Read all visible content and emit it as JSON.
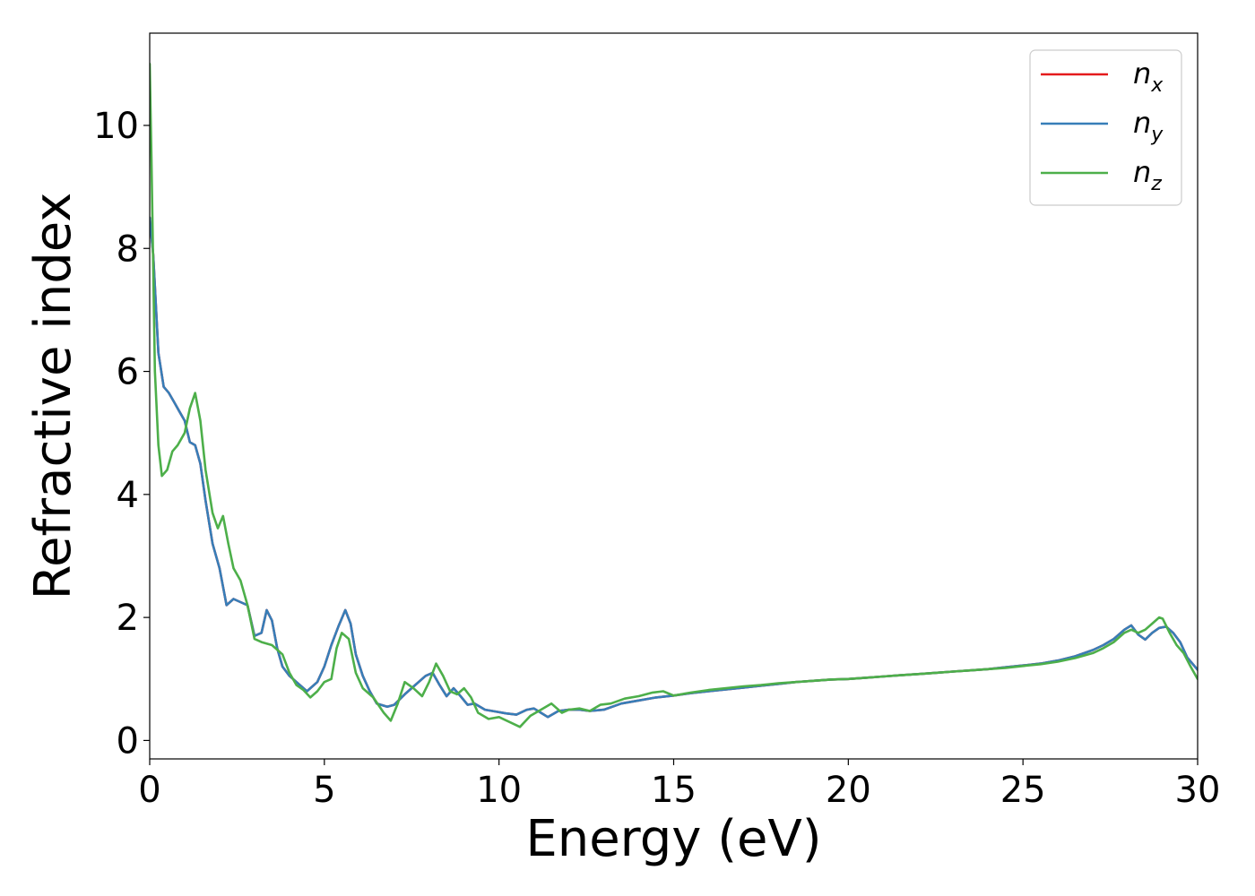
{
  "chart_data": {
    "type": "line",
    "title": "",
    "xlabel": "Energy (eV)",
    "ylabel": "Refractive index",
    "xlim": [
      0,
      30
    ],
    "ylim": [
      -0.3,
      11.5
    ],
    "xticks": [
      0,
      5,
      10,
      15,
      20,
      25,
      30
    ],
    "xtick_labels": [
      "0",
      "5",
      "10",
      "15",
      "20",
      "25",
      "30"
    ],
    "yticks": [
      0,
      2,
      4,
      6,
      8,
      10
    ],
    "ytick_labels": [
      "0",
      "2",
      "4",
      "6",
      "8",
      "10"
    ],
    "grid": false,
    "legend_position": "top-right",
    "series": [
      {
        "name": "n_x",
        "legend_base": "n",
        "legend_sub": "x",
        "color": "#e41a1c",
        "x": [
          0,
          0.1,
          0.25,
          0.4,
          0.55,
          0.7,
          0.85,
          1.0,
          1.15,
          1.3,
          1.45,
          1.6,
          1.8,
          2.0,
          2.2,
          2.4,
          2.6,
          2.8,
          3.0,
          3.2,
          3.35,
          3.5,
          3.65,
          3.8,
          4.0,
          4.2,
          4.5,
          4.8,
          5.0,
          5.2,
          5.4,
          5.6,
          5.75,
          5.9,
          6.1,
          6.3,
          6.5,
          6.8,
          7.0,
          7.3,
          7.6,
          7.9,
          8.1,
          8.3,
          8.5,
          8.7,
          8.9,
          9.1,
          9.3,
          9.6,
          9.9,
          10.2,
          10.5,
          10.8,
          11.0,
          11.2,
          11.4,
          11.7,
          12.0,
          12.3,
          12.6,
          13.0,
          13.5,
          14.0,
          14.5,
          15.0,
          15.5,
          16.0,
          16.5,
          17.0,
          17.5,
          18.0,
          18.5,
          19.0,
          19.5,
          20.0,
          20.5,
          21.0,
          21.5,
          22.0,
          22.5,
          23.0,
          23.5,
          24.0,
          24.5,
          25.0,
          25.5,
          26.0,
          26.5,
          27.0,
          27.3,
          27.6,
          27.9,
          28.1,
          28.3,
          28.5,
          28.7,
          28.9,
          29.1,
          29.3,
          29.5,
          29.7,
          30.0
        ],
        "y": [
          8.5,
          7.9,
          6.3,
          5.75,
          5.65,
          5.5,
          5.35,
          5.2,
          4.85,
          4.8,
          4.5,
          3.9,
          3.2,
          2.8,
          2.2,
          2.3,
          2.25,
          2.2,
          1.7,
          1.75,
          2.12,
          1.95,
          1.5,
          1.2,
          1.05,
          0.95,
          0.8,
          0.95,
          1.2,
          1.55,
          1.85,
          2.12,
          1.9,
          1.4,
          1.05,
          0.8,
          0.6,
          0.55,
          0.58,
          0.75,
          0.9,
          1.05,
          1.1,
          0.9,
          0.72,
          0.85,
          0.72,
          0.58,
          0.6,
          0.5,
          0.47,
          0.44,
          0.42,
          0.5,
          0.52,
          0.45,
          0.38,
          0.48,
          0.5,
          0.5,
          0.48,
          0.5,
          0.6,
          0.65,
          0.7,
          0.73,
          0.77,
          0.8,
          0.83,
          0.86,
          0.89,
          0.92,
          0.95,
          0.97,
          0.99,
          1.0,
          1.02,
          1.04,
          1.06,
          1.08,
          1.1,
          1.12,
          1.14,
          1.16,
          1.19,
          1.22,
          1.25,
          1.3,
          1.37,
          1.47,
          1.55,
          1.65,
          1.8,
          1.87,
          1.72,
          1.64,
          1.75,
          1.83,
          1.85,
          1.75,
          1.6,
          1.35,
          1.15
        ]
      },
      {
        "name": "n_y",
        "legend_base": "n",
        "legend_sub": "y",
        "color": "#377eb8",
        "x": [
          0,
          0.1,
          0.25,
          0.4,
          0.55,
          0.7,
          0.85,
          1.0,
          1.15,
          1.3,
          1.45,
          1.6,
          1.8,
          2.0,
          2.2,
          2.4,
          2.6,
          2.8,
          3.0,
          3.2,
          3.35,
          3.5,
          3.65,
          3.8,
          4.0,
          4.2,
          4.5,
          4.8,
          5.0,
          5.2,
          5.4,
          5.6,
          5.75,
          5.9,
          6.1,
          6.3,
          6.5,
          6.8,
          7.0,
          7.3,
          7.6,
          7.9,
          8.1,
          8.3,
          8.5,
          8.7,
          8.9,
          9.1,
          9.3,
          9.6,
          9.9,
          10.2,
          10.5,
          10.8,
          11.0,
          11.2,
          11.4,
          11.7,
          12.0,
          12.3,
          12.6,
          13.0,
          13.5,
          14.0,
          14.5,
          15.0,
          15.5,
          16.0,
          16.5,
          17.0,
          17.5,
          18.0,
          18.5,
          19.0,
          19.5,
          20.0,
          20.5,
          21.0,
          21.5,
          22.0,
          22.5,
          23.0,
          23.5,
          24.0,
          24.5,
          25.0,
          25.5,
          26.0,
          26.5,
          27.0,
          27.3,
          27.6,
          27.9,
          28.1,
          28.3,
          28.5,
          28.7,
          28.9,
          29.1,
          29.3,
          29.5,
          29.7,
          30.0
        ],
        "y": [
          8.5,
          7.9,
          6.3,
          5.75,
          5.65,
          5.5,
          5.35,
          5.2,
          4.85,
          4.8,
          4.5,
          3.9,
          3.2,
          2.8,
          2.2,
          2.3,
          2.25,
          2.2,
          1.7,
          1.75,
          2.12,
          1.95,
          1.5,
          1.2,
          1.05,
          0.95,
          0.8,
          0.95,
          1.2,
          1.55,
          1.85,
          2.12,
          1.9,
          1.4,
          1.05,
          0.8,
          0.6,
          0.55,
          0.58,
          0.75,
          0.9,
          1.05,
          1.1,
          0.9,
          0.72,
          0.85,
          0.72,
          0.58,
          0.6,
          0.5,
          0.47,
          0.44,
          0.42,
          0.5,
          0.52,
          0.45,
          0.38,
          0.48,
          0.5,
          0.5,
          0.48,
          0.5,
          0.6,
          0.65,
          0.7,
          0.73,
          0.77,
          0.8,
          0.83,
          0.86,
          0.89,
          0.92,
          0.95,
          0.97,
          0.99,
          1.0,
          1.02,
          1.04,
          1.06,
          1.08,
          1.1,
          1.12,
          1.14,
          1.16,
          1.19,
          1.22,
          1.25,
          1.3,
          1.37,
          1.47,
          1.55,
          1.65,
          1.8,
          1.87,
          1.72,
          1.64,
          1.75,
          1.83,
          1.85,
          1.75,
          1.6,
          1.35,
          1.15
        ]
      },
      {
        "name": "n_z",
        "legend_base": "n",
        "legend_sub": "z",
        "color": "#4daf4a",
        "x": [
          0,
          0.05,
          0.15,
          0.25,
          0.35,
          0.5,
          0.65,
          0.8,
          1.0,
          1.15,
          1.3,
          1.45,
          1.6,
          1.8,
          1.95,
          2.1,
          2.25,
          2.4,
          2.6,
          2.8,
          3.0,
          3.2,
          3.5,
          3.8,
          4.0,
          4.2,
          4.4,
          4.6,
          4.8,
          5.0,
          5.2,
          5.35,
          5.5,
          5.7,
          5.9,
          6.1,
          6.4,
          6.7,
          6.9,
          7.1,
          7.3,
          7.55,
          7.8,
          8.0,
          8.2,
          8.4,
          8.6,
          8.8,
          9.0,
          9.2,
          9.4,
          9.7,
          10.0,
          10.3,
          10.6,
          10.9,
          11.2,
          11.5,
          11.8,
          12.0,
          12.3,
          12.6,
          12.9,
          13.2,
          13.6,
          14.0,
          14.4,
          14.7,
          15.0,
          15.5,
          16.0,
          16.5,
          17.0,
          17.5,
          18.0,
          18.5,
          19.0,
          19.5,
          20.0,
          20.5,
          21.0,
          21.5,
          22.0,
          22.5,
          23.0,
          23.5,
          24.0,
          24.5,
          25.0,
          25.5,
          26.0,
          26.5,
          27.0,
          27.3,
          27.6,
          27.9,
          28.1,
          28.3,
          28.5,
          28.7,
          28.9,
          29.0,
          29.2,
          29.4,
          29.6,
          29.8,
          30.0
        ],
        "y": [
          11.0,
          9.5,
          6.0,
          4.8,
          4.3,
          4.4,
          4.7,
          4.8,
          5.0,
          5.4,
          5.65,
          5.2,
          4.4,
          3.7,
          3.45,
          3.65,
          3.2,
          2.8,
          2.6,
          2.2,
          1.65,
          1.6,
          1.55,
          1.4,
          1.1,
          0.9,
          0.82,
          0.7,
          0.8,
          0.95,
          1.0,
          1.5,
          1.75,
          1.65,
          1.1,
          0.85,
          0.7,
          0.45,
          0.32,
          0.6,
          0.95,
          0.85,
          0.72,
          0.95,
          1.25,
          1.05,
          0.8,
          0.75,
          0.85,
          0.7,
          0.45,
          0.35,
          0.38,
          0.3,
          0.22,
          0.4,
          0.5,
          0.6,
          0.45,
          0.5,
          0.52,
          0.48,
          0.58,
          0.6,
          0.68,
          0.72,
          0.78,
          0.8,
          0.73,
          0.78,
          0.82,
          0.85,
          0.88,
          0.9,
          0.93,
          0.95,
          0.97,
          0.99,
          1.0,
          1.02,
          1.04,
          1.06,
          1.08,
          1.1,
          1.12,
          1.14,
          1.16,
          1.18,
          1.21,
          1.24,
          1.28,
          1.34,
          1.42,
          1.5,
          1.6,
          1.75,
          1.8,
          1.75,
          1.8,
          1.9,
          2.0,
          1.98,
          1.75,
          1.55,
          1.42,
          1.2,
          1.0
        ]
      }
    ]
  }
}
